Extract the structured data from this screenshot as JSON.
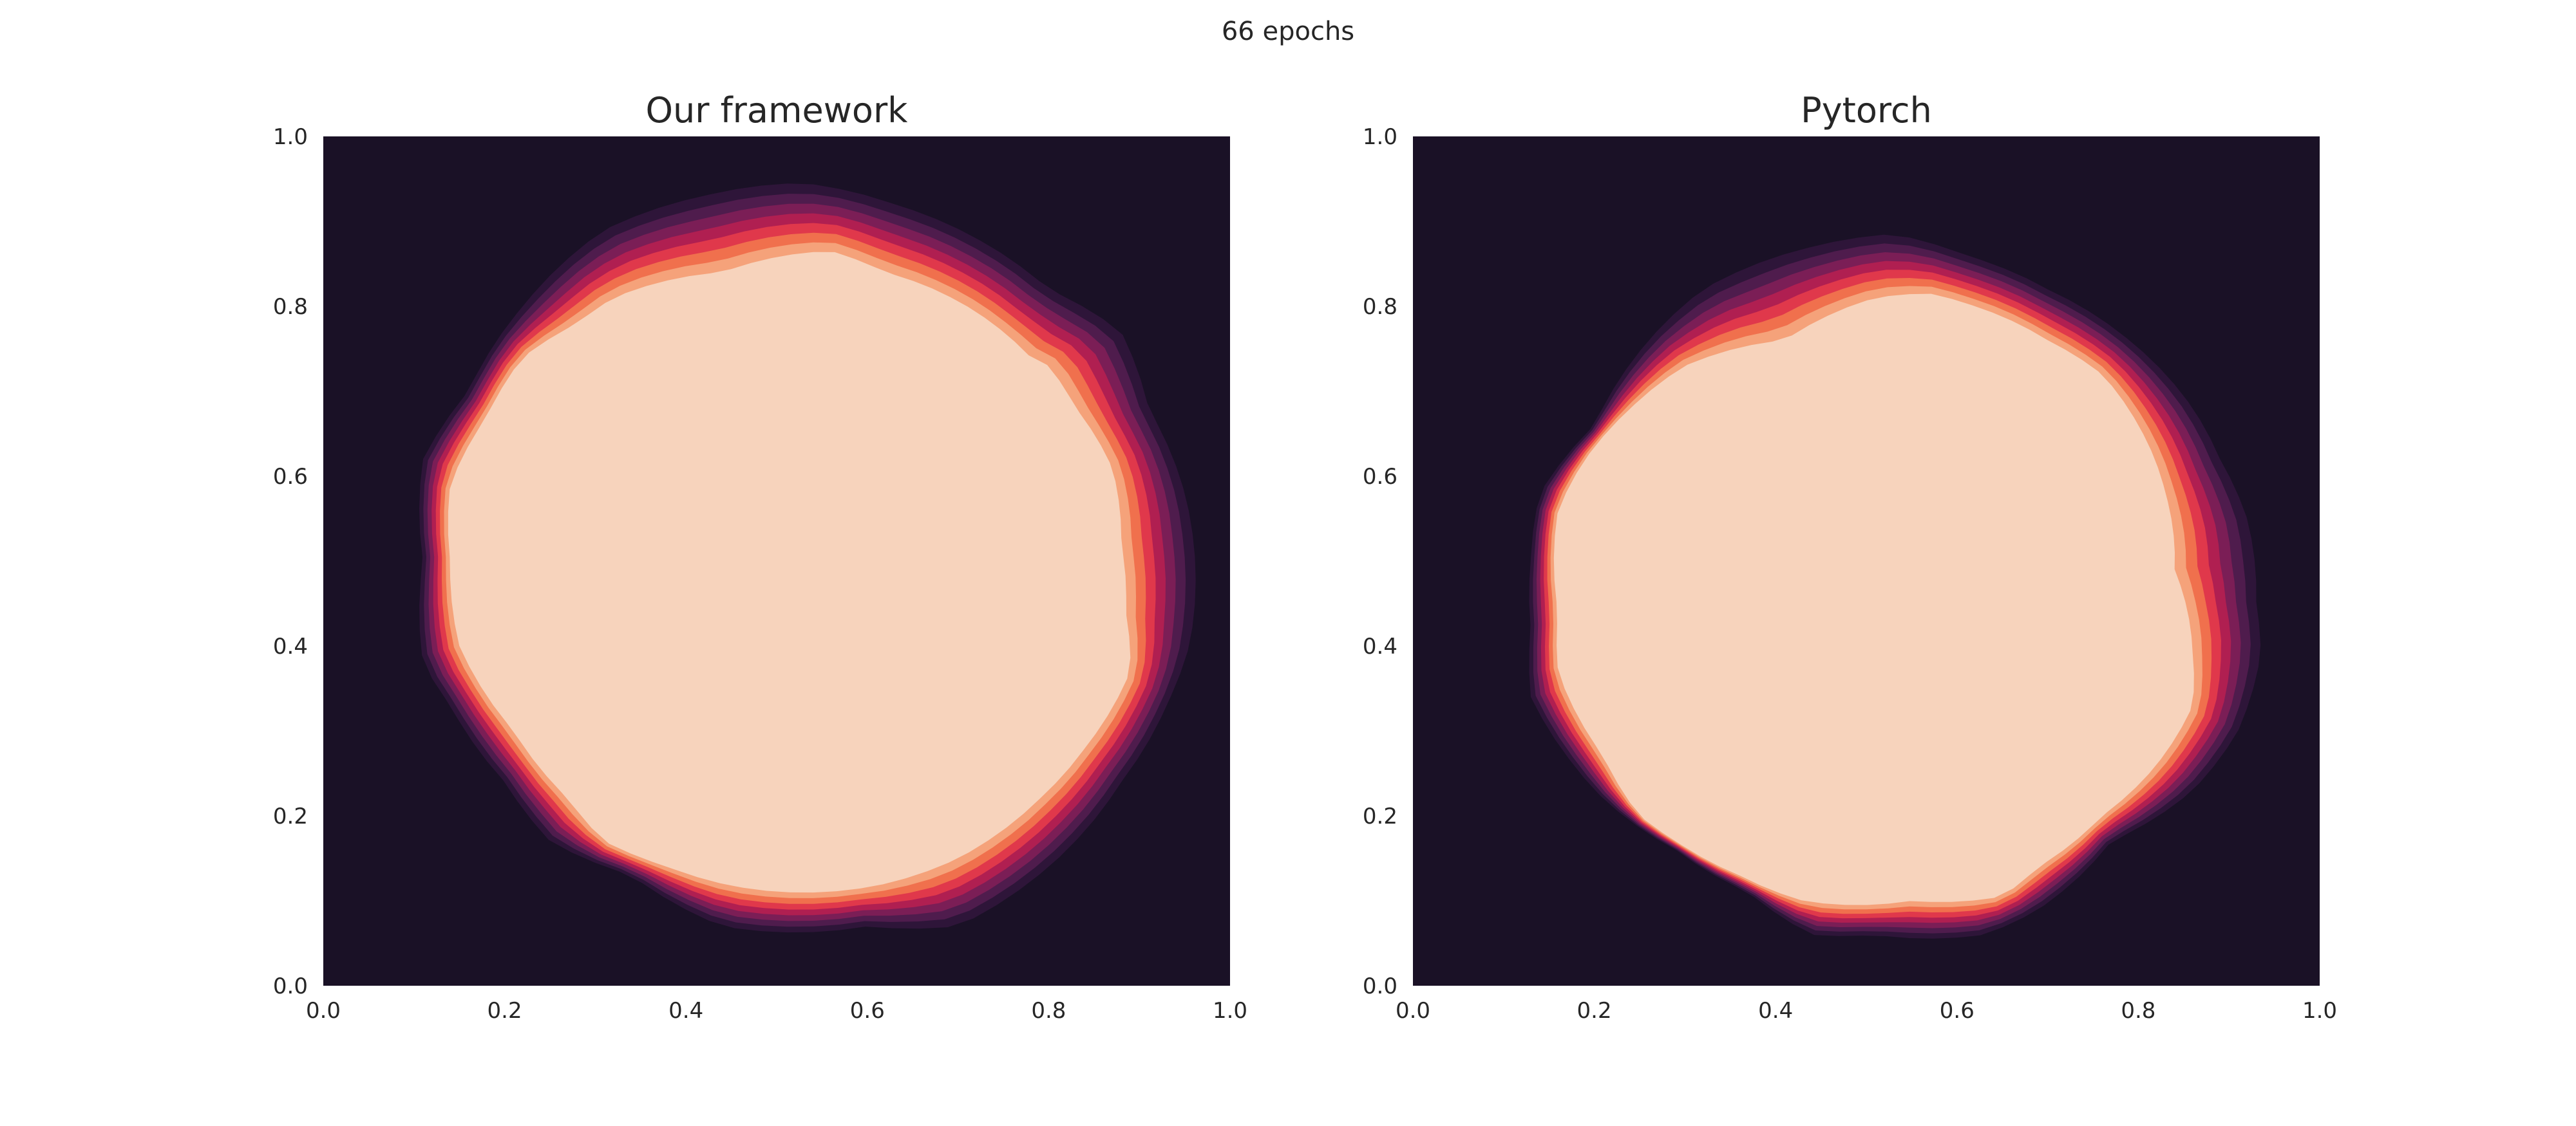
{
  "figure": {
    "suptitle": "66 epochs"
  },
  "colors": {
    "background": "#1a1126",
    "levels": [
      "#2e1539",
      "#4f1c4d",
      "#7b1e56",
      "#b01f51",
      "#e0384b",
      "#f0704d",
      "#f5a27a",
      "#f7d3bc"
    ]
  },
  "chart_data": [
    {
      "type": "contour",
      "title": "Our framework",
      "xlim": [
        0,
        1
      ],
      "ylim": [
        0,
        1
      ],
      "xticks": [
        "0.0",
        "0.2",
        "0.4",
        "0.6",
        "0.8",
        "1.0"
      ],
      "yticks": [
        "0.0",
        "0.2",
        "0.4",
        "0.6",
        "0.8",
        "1.0"
      ],
      "grid": false,
      "levels_count": 8,
      "outer_contour": [
        [
          0.53,
          0.945
        ],
        [
          0.63,
          0.92
        ],
        [
          0.72,
          0.88
        ],
        [
          0.8,
          0.82
        ],
        [
          0.88,
          0.77
        ],
        [
          0.91,
          0.68
        ],
        [
          0.95,
          0.58
        ],
        [
          0.96,
          0.52
        ],
        [
          0.955,
          0.4
        ],
        [
          0.93,
          0.33
        ],
        [
          0.88,
          0.24
        ],
        [
          0.8,
          0.14
        ],
        [
          0.7,
          0.07
        ],
        [
          0.6,
          0.07
        ],
        [
          0.44,
          0.07
        ],
        [
          0.34,
          0.13
        ],
        [
          0.25,
          0.17
        ],
        [
          0.2,
          0.24
        ],
        [
          0.14,
          0.33
        ],
        [
          0.11,
          0.38
        ],
        [
          0.11,
          0.5
        ],
        [
          0.11,
          0.62
        ],
        [
          0.16,
          0.7
        ],
        [
          0.22,
          0.8
        ],
        [
          0.31,
          0.89
        ],
        [
          0.42,
          0.93
        ]
      ],
      "inner_contour": [
        [
          0.56,
          0.865
        ],
        [
          0.62,
          0.84
        ],
        [
          0.71,
          0.8
        ],
        [
          0.78,
          0.74
        ],
        [
          0.8,
          0.73
        ],
        [
          0.83,
          0.68
        ],
        [
          0.87,
          0.61
        ],
        [
          0.88,
          0.52
        ],
        [
          0.885,
          0.44
        ],
        [
          0.89,
          0.37
        ],
        [
          0.84,
          0.28
        ],
        [
          0.79,
          0.22
        ],
        [
          0.7,
          0.15
        ],
        [
          0.62,
          0.12
        ],
        [
          0.44,
          0.12
        ],
        [
          0.38,
          0.14
        ],
        [
          0.31,
          0.17
        ],
        [
          0.27,
          0.22
        ],
        [
          0.21,
          0.3
        ],
        [
          0.15,
          0.4
        ],
        [
          0.14,
          0.5
        ],
        [
          0.14,
          0.59
        ],
        [
          0.18,
          0.67
        ],
        [
          0.22,
          0.74
        ],
        [
          0.28,
          0.78
        ],
        [
          0.32,
          0.81
        ],
        [
          0.44,
          0.84
        ]
      ]
    },
    {
      "type": "contour",
      "title": "Pytorch",
      "xlim": [
        0,
        1
      ],
      "ylim": [
        0,
        1
      ],
      "xticks": [
        "0.0",
        "0.2",
        "0.4",
        "0.6",
        "0.8",
        "1.0"
      ],
      "yticks": [
        "0.0",
        "0.2",
        "0.4",
        "0.6",
        "0.8",
        "1.0"
      ],
      "grid": false,
      "levels_count": 8,
      "outer_contour": [
        [
          0.53,
          0.885
        ],
        [
          0.61,
          0.86
        ],
        [
          0.7,
          0.82
        ],
        [
          0.79,
          0.76
        ],
        [
          0.83,
          0.72
        ],
        [
          0.86,
          0.68
        ],
        [
          0.89,
          0.62
        ],
        [
          0.92,
          0.55
        ],
        [
          0.93,
          0.45
        ],
        [
          0.935,
          0.39
        ],
        [
          0.91,
          0.3
        ],
        [
          0.86,
          0.23
        ],
        [
          0.77,
          0.17
        ],
        [
          0.69,
          0.09
        ],
        [
          0.63,
          0.06
        ],
        [
          0.51,
          0.06
        ],
        [
          0.44,
          0.06
        ],
        [
          0.37,
          0.11
        ],
        [
          0.29,
          0.16
        ],
        [
          0.21,
          0.22
        ],
        [
          0.17,
          0.27
        ],
        [
          0.13,
          0.34
        ],
        [
          0.13,
          0.42
        ],
        [
          0.13,
          0.5
        ],
        [
          0.14,
          0.58
        ],
        [
          0.2,
          0.66
        ],
        [
          0.32,
          0.82
        ],
        [
          0.44,
          0.87
        ]
      ],
      "inner_contour": [
        [
          0.57,
          0.815
        ],
        [
          0.62,
          0.8
        ],
        [
          0.7,
          0.76
        ],
        [
          0.76,
          0.72
        ],
        [
          0.8,
          0.66
        ],
        [
          0.83,
          0.58
        ],
        [
          0.84,
          0.49
        ],
        [
          0.86,
          0.39
        ],
        [
          0.86,
          0.33
        ],
        [
          0.82,
          0.26
        ],
        [
          0.76,
          0.2
        ],
        [
          0.69,
          0.14
        ],
        [
          0.65,
          0.105
        ],
        [
          0.55,
          0.1
        ],
        [
          0.43,
          0.1
        ],
        [
          0.36,
          0.13
        ],
        [
          0.29,
          0.17
        ],
        [
          0.25,
          0.2
        ],
        [
          0.21,
          0.27
        ],
        [
          0.16,
          0.37
        ],
        [
          0.16,
          0.44
        ],
        [
          0.16,
          0.56
        ],
        [
          0.19,
          0.62
        ],
        [
          0.24,
          0.68
        ],
        [
          0.3,
          0.73
        ],
        [
          0.41,
          0.76
        ],
        [
          0.51,
          0.81
        ]
      ]
    }
  ]
}
